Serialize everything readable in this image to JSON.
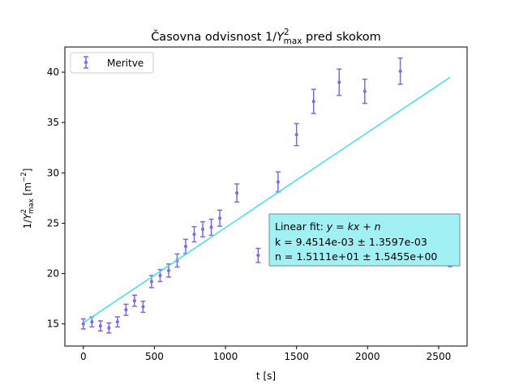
{
  "chart_data": {
    "type": "scatter",
    "title": {
      "prefix": "Časovna odvisnost 1/",
      "var": "Y",
      "sup": "2",
      "sub": "max",
      "suffix": " pred skokom"
    },
    "xlabel": "t [s]",
    "ylabel": {
      "prefix": "1/",
      "var": "Y",
      "sup": "2",
      "sub": "max",
      "unit_open": " [m",
      "unit_sup": "−2",
      "unit_close": "]"
    },
    "xlim": [
      -130,
      2700
    ],
    "ylim": [
      12.8,
      42.5
    ],
    "xticks": [
      0,
      500,
      1000,
      1500,
      2000,
      2500
    ],
    "yticks": [
      15,
      20,
      25,
      30,
      35,
      40
    ],
    "grid": false,
    "legend": {
      "position": "top-left",
      "entries": [
        "Meritve"
      ]
    },
    "colors": {
      "points": "#7b68ee",
      "fit_line": "#40e0e8",
      "fit_box_fill": "#a0f0f4",
      "fit_box_edge": "#6c8f93"
    },
    "series": [
      {
        "name": "Meritve",
        "x": [
          0,
          60,
          120,
          180,
          240,
          300,
          360,
          420,
          480,
          540,
          600,
          660,
          720,
          780,
          840,
          900,
          960,
          1080,
          1230,
          1370,
          1500,
          1620,
          1800,
          1980,
          2230,
          2580
        ],
        "y": [
          15.0,
          15.2,
          14.8,
          14.6,
          15.2,
          16.4,
          17.3,
          16.7,
          19.2,
          19.8,
          20.3,
          21.3,
          22.7,
          23.9,
          24.4,
          24.6,
          25.5,
          28.0,
          21.8,
          29.1,
          33.8,
          37.1,
          39.0,
          38.1,
          40.1,
          21.4
        ],
        "yerr": [
          0.5,
          0.5,
          0.5,
          0.5,
          0.5,
          0.55,
          0.55,
          0.55,
          0.6,
          0.6,
          0.65,
          0.65,
          0.7,
          0.75,
          0.75,
          0.8,
          0.8,
          0.9,
          0.7,
          1.0,
          1.1,
          1.2,
          1.3,
          1.2,
          1.3,
          0.7
        ]
      }
    ],
    "fit_line": {
      "x": [
        0,
        2580
      ],
      "k": 0.0094514,
      "n": 15.111
    },
    "annotation": {
      "line1_prefix": "Linear fit: ",
      "line1_eq": "y = kx + n",
      "line2": "k = 9.4514e-03 ± 1.3597e-03",
      "line3": "n = 1.5111e+01 ± 1.5455e+00"
    }
  }
}
